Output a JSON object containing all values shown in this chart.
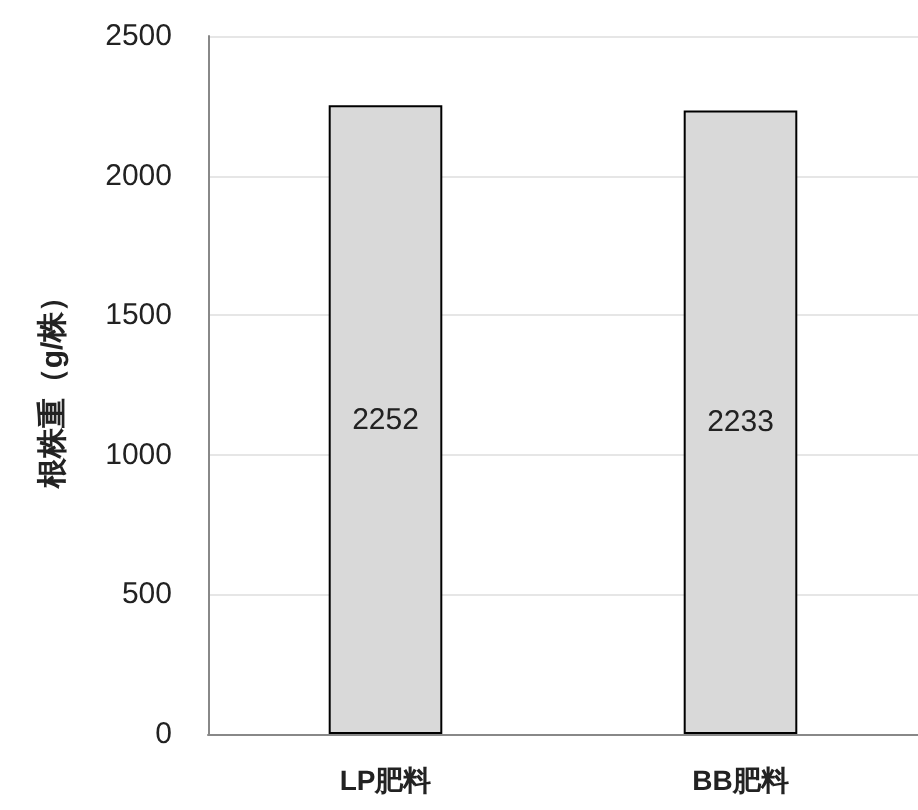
{
  "chart_data": {
    "type": "bar",
    "ylabel": "根株重（g/株）",
    "categories": [
      "LP肥料",
      "BB肥料"
    ],
    "values": [
      2252,
      2233
    ],
    "color": "#d9d9d9",
    "ylim": [
      0,
      2500
    ],
    "yticks": [
      0,
      500,
      1000,
      1500,
      2000,
      2500
    ],
    "grid": "y",
    "data_labels": true
  }
}
